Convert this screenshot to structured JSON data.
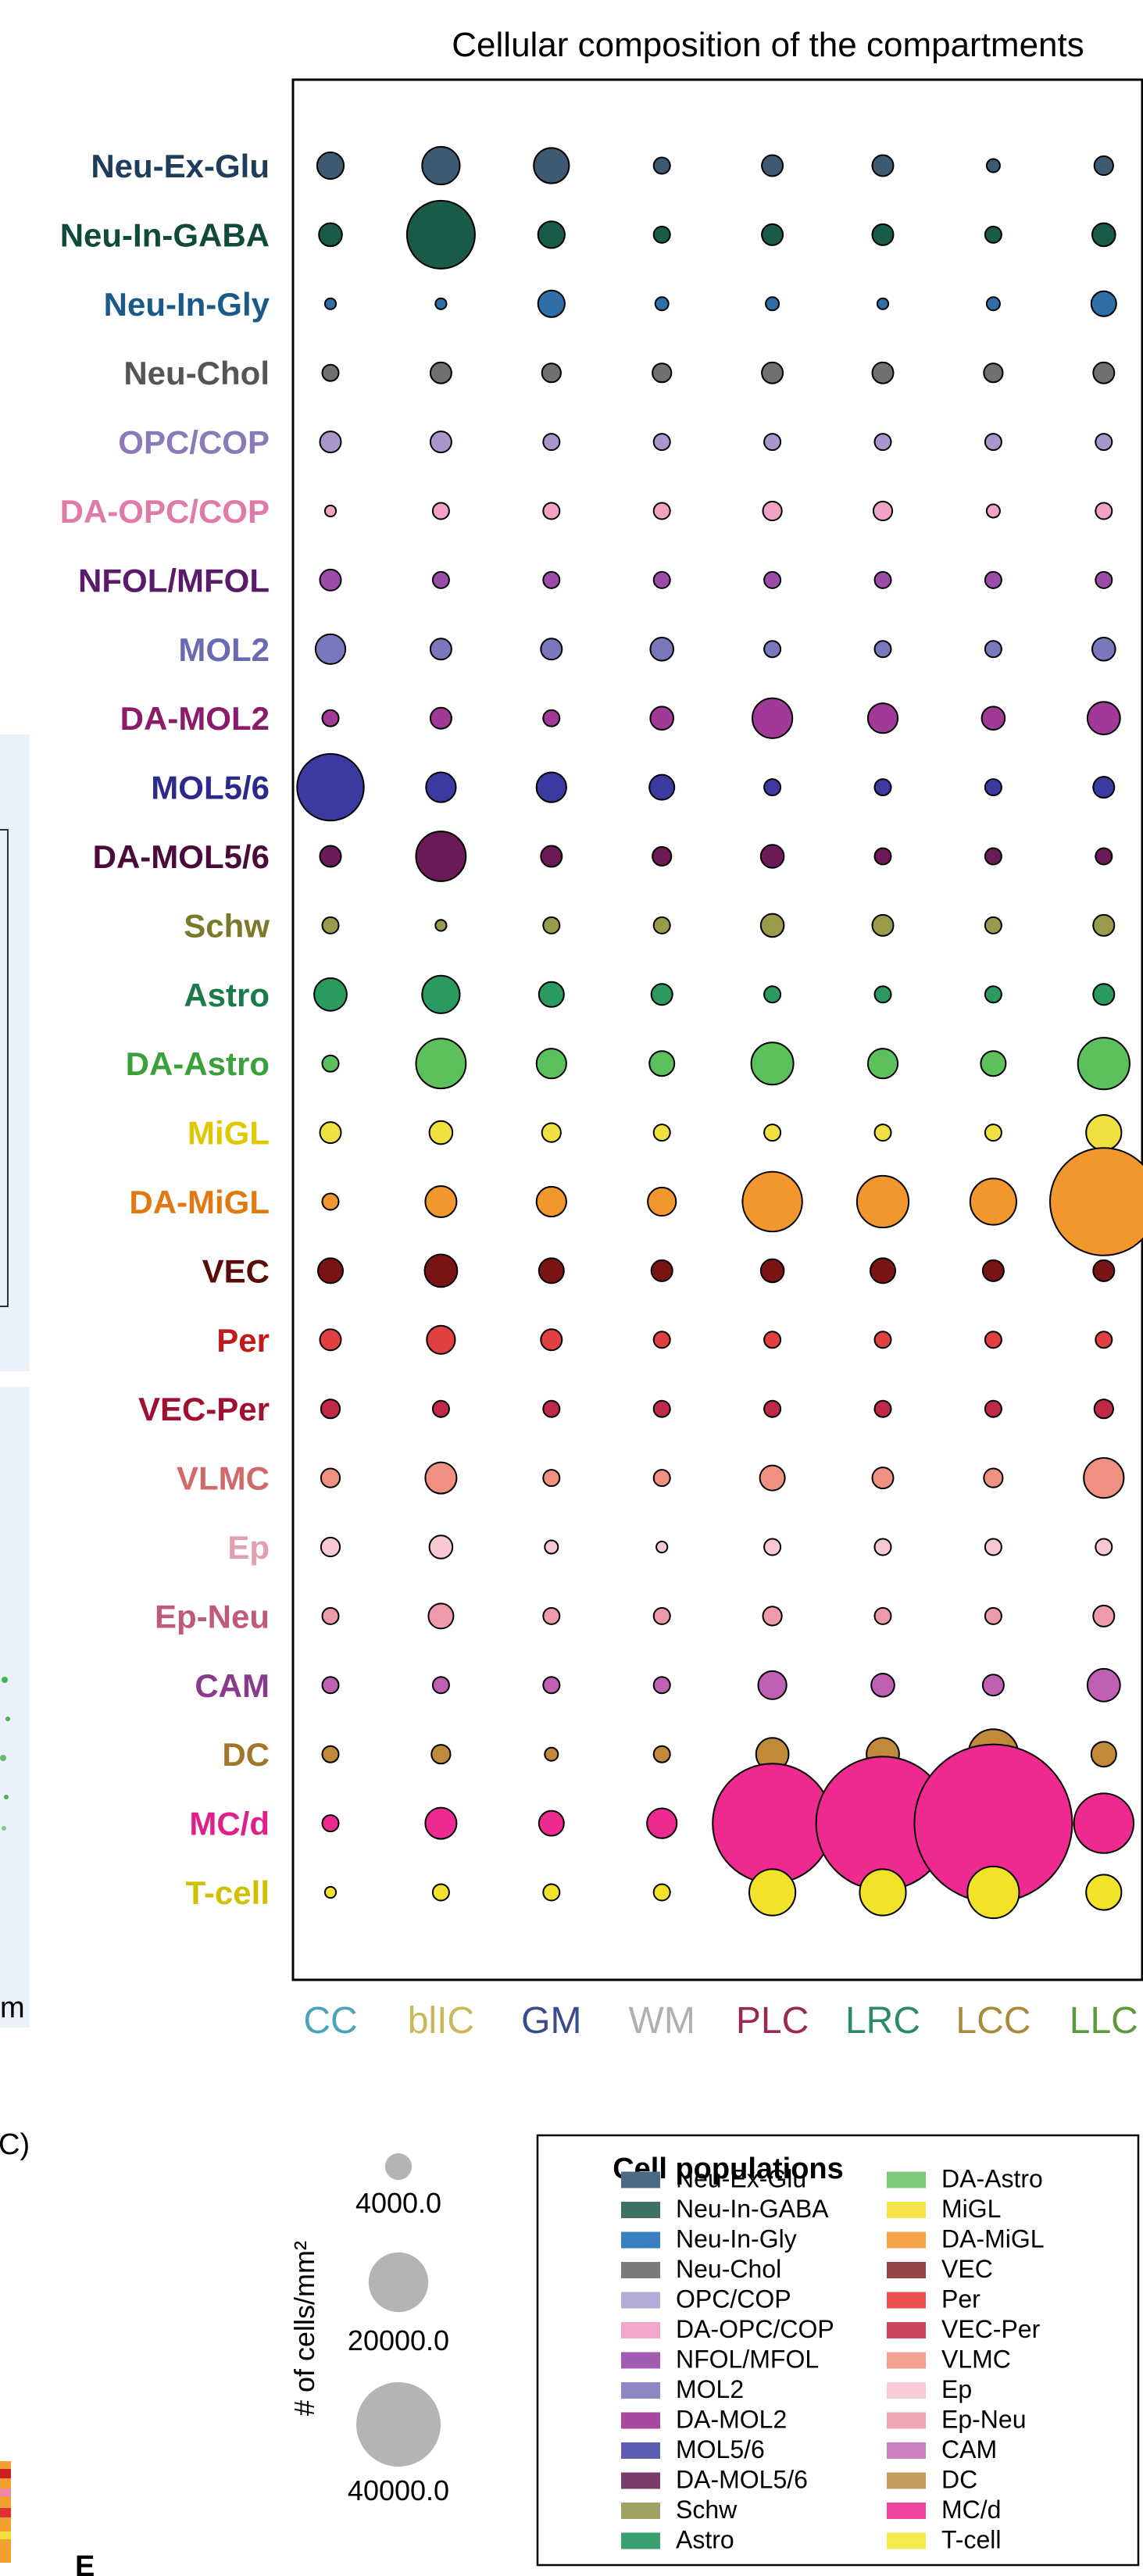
{
  "chart_data": {
    "type": "scatter",
    "title": "Cellular composition of the compartments",
    "x_categories": [
      "CC",
      "blIC",
      "GM",
      "WM",
      "PLC",
      "LRC",
      "LCC",
      "LLC"
    ],
    "x_category_colors": [
      "#4aa3b8",
      "#c9b75a",
      "#3a4a8a",
      "#b0b0b0",
      "#9a2a55",
      "#2a8a6a",
      "#a88a3a",
      "#5a9a3a"
    ],
    "y_categories": [
      "Neu-Ex-Glu",
      "Neu-In-GABA",
      "Neu-In-Gly",
      "Neu-Chol",
      "OPC/COP",
      "DA-OPC/COP",
      "NFOL/MFOL",
      "MOL2",
      "DA-MOL2",
      "MOL5/6",
      "DA-MOL5/6",
      "Schw",
      "Astro",
      "DA-Astro",
      "MiGL",
      "DA-MiGL",
      "VEC",
      "Per",
      "VEC-Per",
      "VLMC",
      "Ep",
      "Ep-Neu",
      "CAM",
      "DC",
      "MC/d",
      "T-cell"
    ],
    "y_category_colors": [
      "#1f3d5a",
      "#0f4a3a",
      "#1a5a8a",
      "#555555",
      "#8a7ab8",
      "#e07aa8",
      "#5a1a6a",
      "#6a6ab0",
      "#8a1a6a",
      "#2a2a8a",
      "#4a0a3a",
      "#7a7a2a",
      "#1a7a4a",
      "#3aa03a",
      "#e0c800",
      "#e07a10",
      "#5a0a0a",
      "#c01a1a",
      "#a01030",
      "#d06a6a",
      "#e0a0b0",
      "#c05a7a",
      "#8a3a8a",
      "#a0782a",
      "#e0208a",
      "#d0c000"
    ],
    "point_colors": [
      "#3d5a72",
      "#1a5a48",
      "#2f6fa8",
      "#707070",
      "#a896cc",
      "#f2a2c6",
      "#9a4ca8",
      "#7a78bc",
      "#a03a96",
      "#3a3aa0",
      "#6a1a54",
      "#9a9a4a",
      "#2a9a60",
      "#5cc05c",
      "#f0e040",
      "#f2962e",
      "#7a1414",
      "#e04040",
      "#c02a48",
      "#f09080",
      "#f8c8d2",
      "#ee9aaa",
      "#c060b4",
      "#c08a3a",
      "#ee2a90",
      "#f2e22a"
    ],
    "values": [
      [
        4000,
        8000,
        7000,
        1500,
        2500,
        2500,
        1000,
        2000
      ],
      [
        3000,
        26000,
        4000,
        1500,
        2500,
        2500,
        1500,
        3000
      ],
      [
        700,
        700,
        4000,
        1000,
        1000,
        700,
        1000,
        3500
      ],
      [
        1500,
        2500,
        2000,
        2000,
        2500,
        2500,
        2000,
        2500
      ],
      [
        2500,
        2500,
        1500,
        1500,
        1500,
        1500,
        1500,
        1500
      ],
      [
        700,
        1500,
        1500,
        1500,
        2000,
        2000,
        1000,
        1500
      ],
      [
        2500,
        1500,
        1500,
        1500,
        1500,
        1500,
        1500,
        1500
      ],
      [
        5000,
        2500,
        2500,
        3000,
        1500,
        1500,
        1500,
        3000
      ],
      [
        1500,
        2500,
        1500,
        3000,
        9000,
        5000,
        3000,
        6000
      ],
      [
        25000,
        5000,
        5000,
        3500,
        1500,
        1500,
        1500,
        2500
      ],
      [
        2500,
        14000,
        2500,
        2000,
        3000,
        1500,
        1500,
        1500
      ],
      [
        1500,
        700,
        1500,
        1500,
        3000,
        2500,
        1500,
        2500
      ],
      [
        6000,
        8000,
        3500,
        2500,
        1500,
        1500,
        1500,
        2500
      ],
      [
        1500,
        14000,
        5000,
        3500,
        10000,
        5000,
        3500,
        15000
      ],
      [
        2500,
        3000,
        2000,
        1500,
        1500,
        1500,
        1500,
        7000
      ],
      [
        1500,
        5500,
        5000,
        4500,
        20000,
        15000,
        12000,
        65000
      ],
      [
        3500,
        6000,
        3500,
        2500,
        3000,
        3500,
        2500,
        2500
      ],
      [
        2500,
        4500,
        2500,
        1500,
        1500,
        1500,
        1500,
        1500
      ],
      [
        2000,
        1500,
        1500,
        1500,
        1500,
        1500,
        1500,
        2000
      ],
      [
        2000,
        5500,
        1500,
        1500,
        3500,
        2500,
        2000,
        9000
      ],
      [
        2000,
        3000,
        1000,
        700,
        1500,
        1500,
        1500,
        1500
      ],
      [
        1500,
        3500,
        1500,
        1500,
        2000,
        1500,
        1500,
        2500
      ],
      [
        1500,
        1500,
        1500,
        1500,
        4500,
        3000,
        2500,
        6000
      ],
      [
        1500,
        2000,
        1000,
        1500,
        6000,
        6000,
        14000,
        3500
      ],
      [
        1500,
        5500,
        3500,
        5000,
        80000,
        100000,
        140000,
        20000
      ],
      [
        700,
        1500,
        1500,
        1500,
        12000,
        12000,
        15000,
        7000
      ]
    ],
    "size_legend": {
      "label": "# of cells/mm²",
      "values": [
        4000,
        20000,
        40000
      ],
      "value_labels": [
        "4000.0",
        "20000.0",
        "40000.0"
      ],
      "color": "#b4b4b4"
    },
    "legend": {
      "title": "Cell populations",
      "entries": [
        {
          "label": "Neu-Ex-Glu",
          "color": "#4b6a84"
        },
        {
          "label": "Neu-In-GABA",
          "color": "#3e7266"
        },
        {
          "label": "Neu-In-Gly",
          "color": "#3a7fbf"
        },
        {
          "label": "Neu-Chol",
          "color": "#7a7a7a"
        },
        {
          "label": "OPC/COP",
          "color": "#b8aad6"
        },
        {
          "label": "DA-OPC/COP",
          "color": "#f2a8cc"
        },
        {
          "label": "NFOL/MFOL",
          "color": "#a25cb2"
        },
        {
          "label": "MOL2",
          "color": "#8c88c4"
        },
        {
          "label": "DA-MOL2",
          "color": "#a8489e"
        },
        {
          "label": "MOL5/6",
          "color": "#5c5cb0"
        },
        {
          "label": "DA-MOL5/6",
          "color": "#7a3c6a"
        },
        {
          "label": "Schw",
          "color": "#a0a060"
        },
        {
          "label": "Astro",
          "color": "#3aa070"
        },
        {
          "label": "DA-Astro",
          "color": "#7cca78"
        },
        {
          "label": "MiGL",
          "color": "#f4e44a"
        },
        {
          "label": "DA-MiGL",
          "color": "#f6a44a"
        },
        {
          "label": "VEC",
          "color": "#944444"
        },
        {
          "label": "Per",
          "color": "#ec5050"
        },
        {
          "label": "VEC-Per",
          "color": "#cc4660"
        },
        {
          "label": "VLMC",
          "color": "#f2a090"
        },
        {
          "label": "Ep",
          "color": "#f8ccd6"
        },
        {
          "label": "Ep-Neu",
          "color": "#f0a4b4"
        },
        {
          "label": "CAM",
          "color": "#cc7ec0"
        },
        {
          "label": "DC",
          "color": "#c49c5c"
        },
        {
          "label": "MC/d",
          "color": "#ee44a0"
        },
        {
          "label": "T-cell",
          "color": "#f4ec4c"
        }
      ]
    },
    "grid": false,
    "legend_placement": "bottom-right"
  },
  "panel_labels": {
    "c": "C)",
    "e": "E",
    "m": "m"
  }
}
